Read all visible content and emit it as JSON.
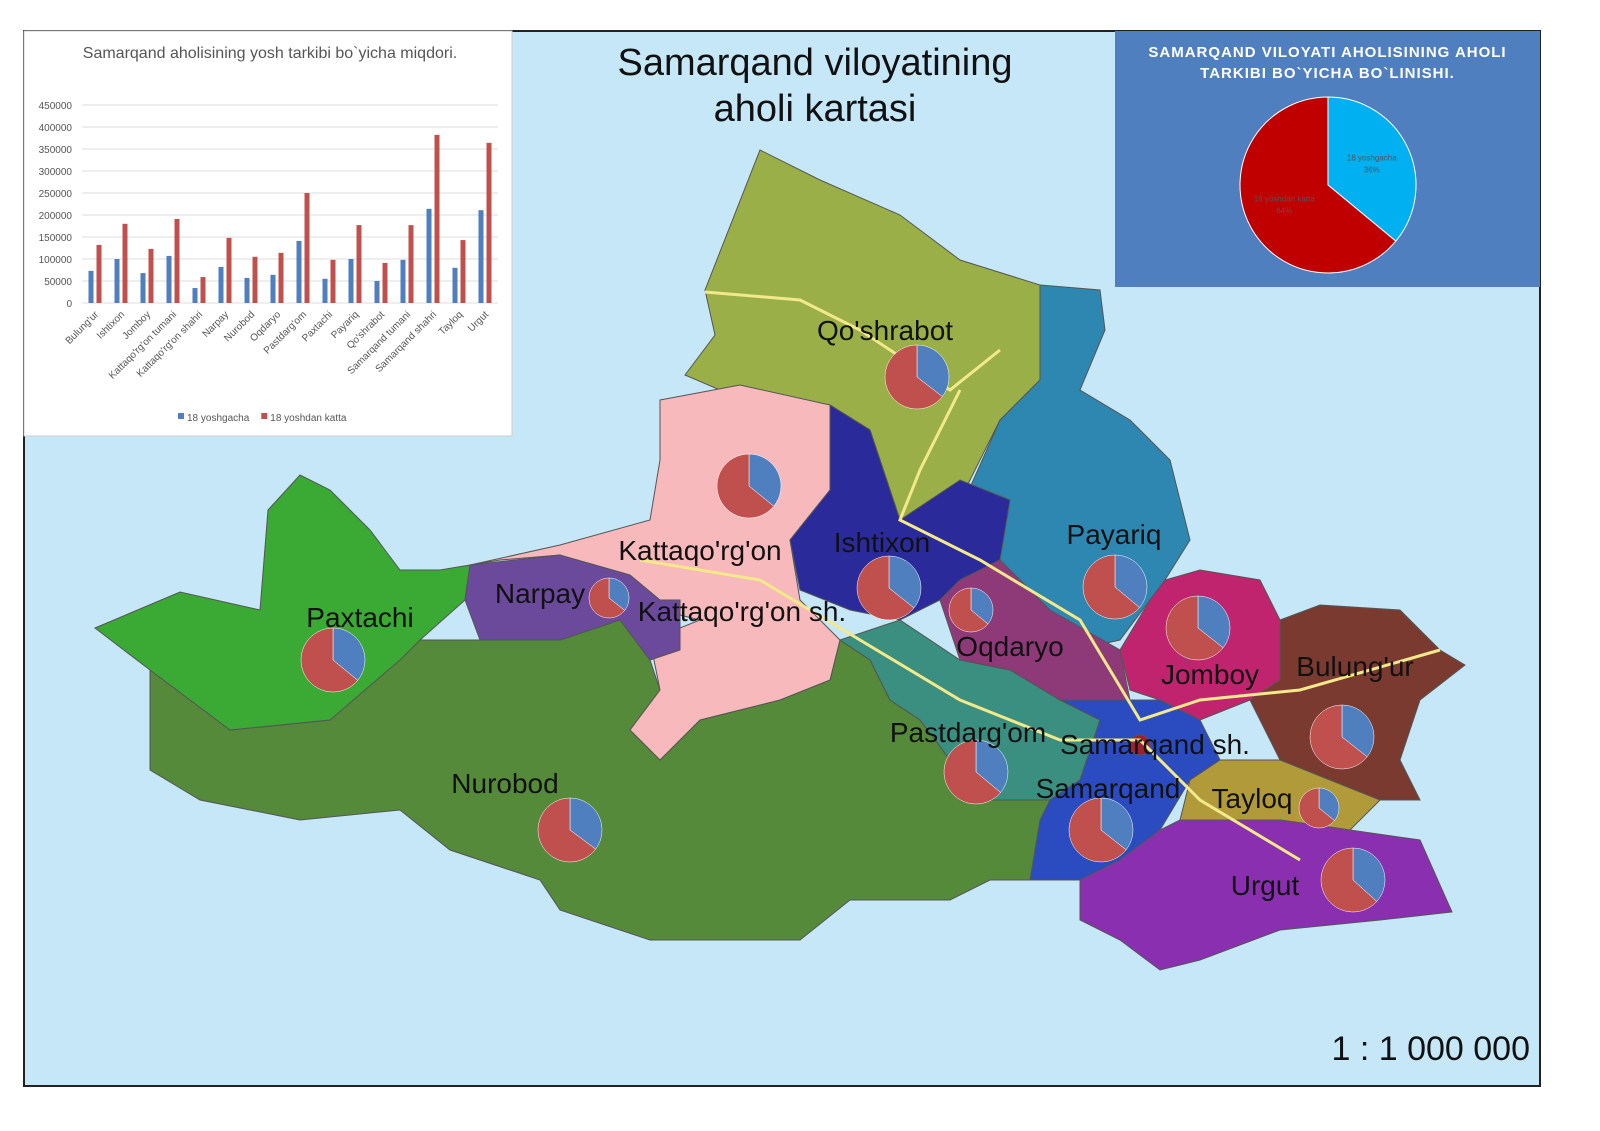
{
  "map": {
    "title": "Samarqand viloyatining aholi kartasi",
    "scale": "1 : 1 000 000",
    "districts": [
      "Qo'shrabot",
      "Kattaqo'rg'on",
      "Ishtixon",
      "Payariq",
      "Narpay",
      "Kattaqo'rg'on sh.",
      "Paxtachi",
      "Oqdaryo",
      "Jomboy",
      "Bulung'ur",
      "Pastdarg'om",
      "Samarqand sh.",
      "Samarqand",
      "Tayloq",
      "Nurobod",
      "Urgut"
    ]
  },
  "chart_data": [
    {
      "type": "bar",
      "title": "Samarqand aholisining yosh tarkibi bo`yicha miqdori.",
      "categories": [
        "Bulung'ur",
        "Ishtixon",
        "Jomboy",
        "Kattaqo'rg'on tumani",
        "Kattaqo'rg'on shahri",
        "Narpay",
        "Nurobod",
        "Oqdaryo",
        "Pastdarg'om",
        "Paxtachi",
        "Payariq",
        "Qo'shrabot",
        "Samarqand tumani",
        "Samarqand shahri",
        "Tayloq",
        "Urgut"
      ],
      "series": [
        {
          "name": "18 yoshgacha",
          "color": "#4f7fbf",
          "values": [
            73000,
            100000,
            68000,
            107000,
            34000,
            82000,
            57000,
            64000,
            141000,
            55000,
            100000,
            50000,
            98000,
            214000,
            80000,
            211000
          ]
        },
        {
          "name": "18 yoshdan katta",
          "color": "#c0504d",
          "values": [
            132000,
            180000,
            123000,
            191000,
            59000,
            148000,
            105000,
            114000,
            250000,
            98000,
            177000,
            91000,
            177000,
            382000,
            143000,
            364000
          ]
        }
      ],
      "ylim": [
        0,
        450000
      ],
      "yticks": [
        0,
        50000,
        100000,
        150000,
        200000,
        250000,
        300000,
        350000,
        400000,
        450000
      ],
      "grid": true,
      "legend": "bottom"
    },
    {
      "type": "pie",
      "title": "SAMARQAND VILOYATI AHOLISINING AHOLI TARKIBI BO`YICHA BO`LINISHI.",
      "categories": [
        "18 yoshgacha",
        "18 yoshdan katta"
      ],
      "values": [
        36,
        64
      ],
      "value_labels": [
        "36%",
        "64%"
      ],
      "colors": [
        "#00b0f0",
        "#c00000"
      ]
    }
  ]
}
